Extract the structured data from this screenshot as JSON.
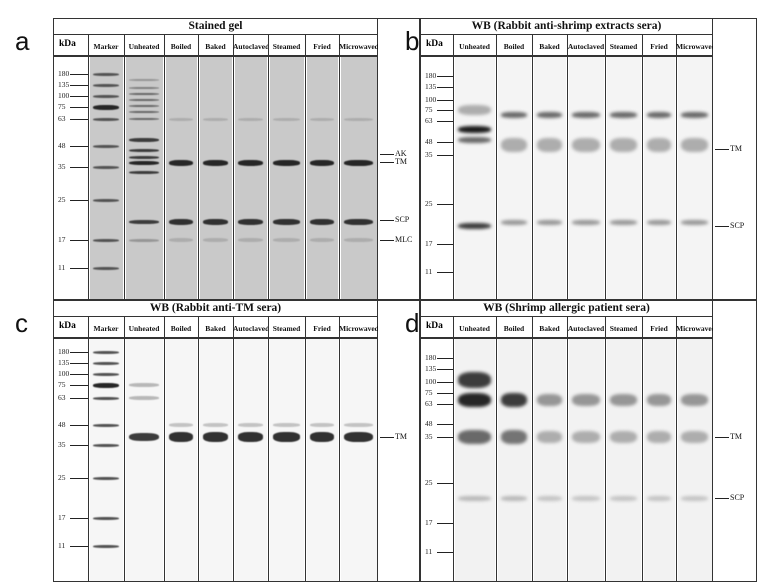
{
  "panels": [
    {
      "letter": "a",
      "title": "Stained gel",
      "kda": "kDa",
      "lanes": [
        "Marker",
        "Unheated",
        "Boiled",
        "Baked",
        "Autoclaved",
        "Steamed",
        "Fried",
        "Microwaved"
      ],
      "markers": [
        "180",
        "135",
        "100",
        "75",
        "63",
        "48",
        "35",
        "25",
        "17",
        "11"
      ],
      "annotations": [
        "AK",
        "TM",
        "SCP",
        "MLC"
      ]
    },
    {
      "letter": "b",
      "title": "WB (Rabbit anti-shrimp extracts sera)",
      "kda": "kDa",
      "lanes": [
        "Unheated",
        "Boiled",
        "Baked",
        "Autoclaved",
        "Steamed",
        "Fried",
        "Microwaved"
      ],
      "markers": [
        "180",
        "135",
        "100",
        "75",
        "63",
        "48",
        "35",
        "25",
        "17",
        "11"
      ],
      "annotations": [
        "TM",
        "SCP"
      ]
    },
    {
      "letter": "c",
      "title": "WB (Rabbit anti-TM sera)",
      "kda": "kDa",
      "lanes": [
        "Marker",
        "Unheated",
        "Boiled",
        "Baked",
        "Autoclaved",
        "Steamed",
        "Fried",
        "Microwaved"
      ],
      "markers": [
        "180",
        "135",
        "100",
        "75",
        "63",
        "48",
        "35",
        "25",
        "17",
        "11"
      ],
      "annotations": [
        "TM"
      ]
    },
    {
      "letter": "d",
      "title": "WB (Shrimp allergic patient sera)",
      "kda": "kDa",
      "lanes": [
        "Unheated",
        "Boiled",
        "Baked",
        "Autoclaved",
        "Steamed",
        "Fried",
        "Microwaved"
      ],
      "markers": [
        "180",
        "135",
        "100",
        "75",
        "63",
        "48",
        "35",
        "25",
        "17",
        "11"
      ],
      "annotations": [
        "TM",
        "SCP"
      ]
    }
  ]
}
